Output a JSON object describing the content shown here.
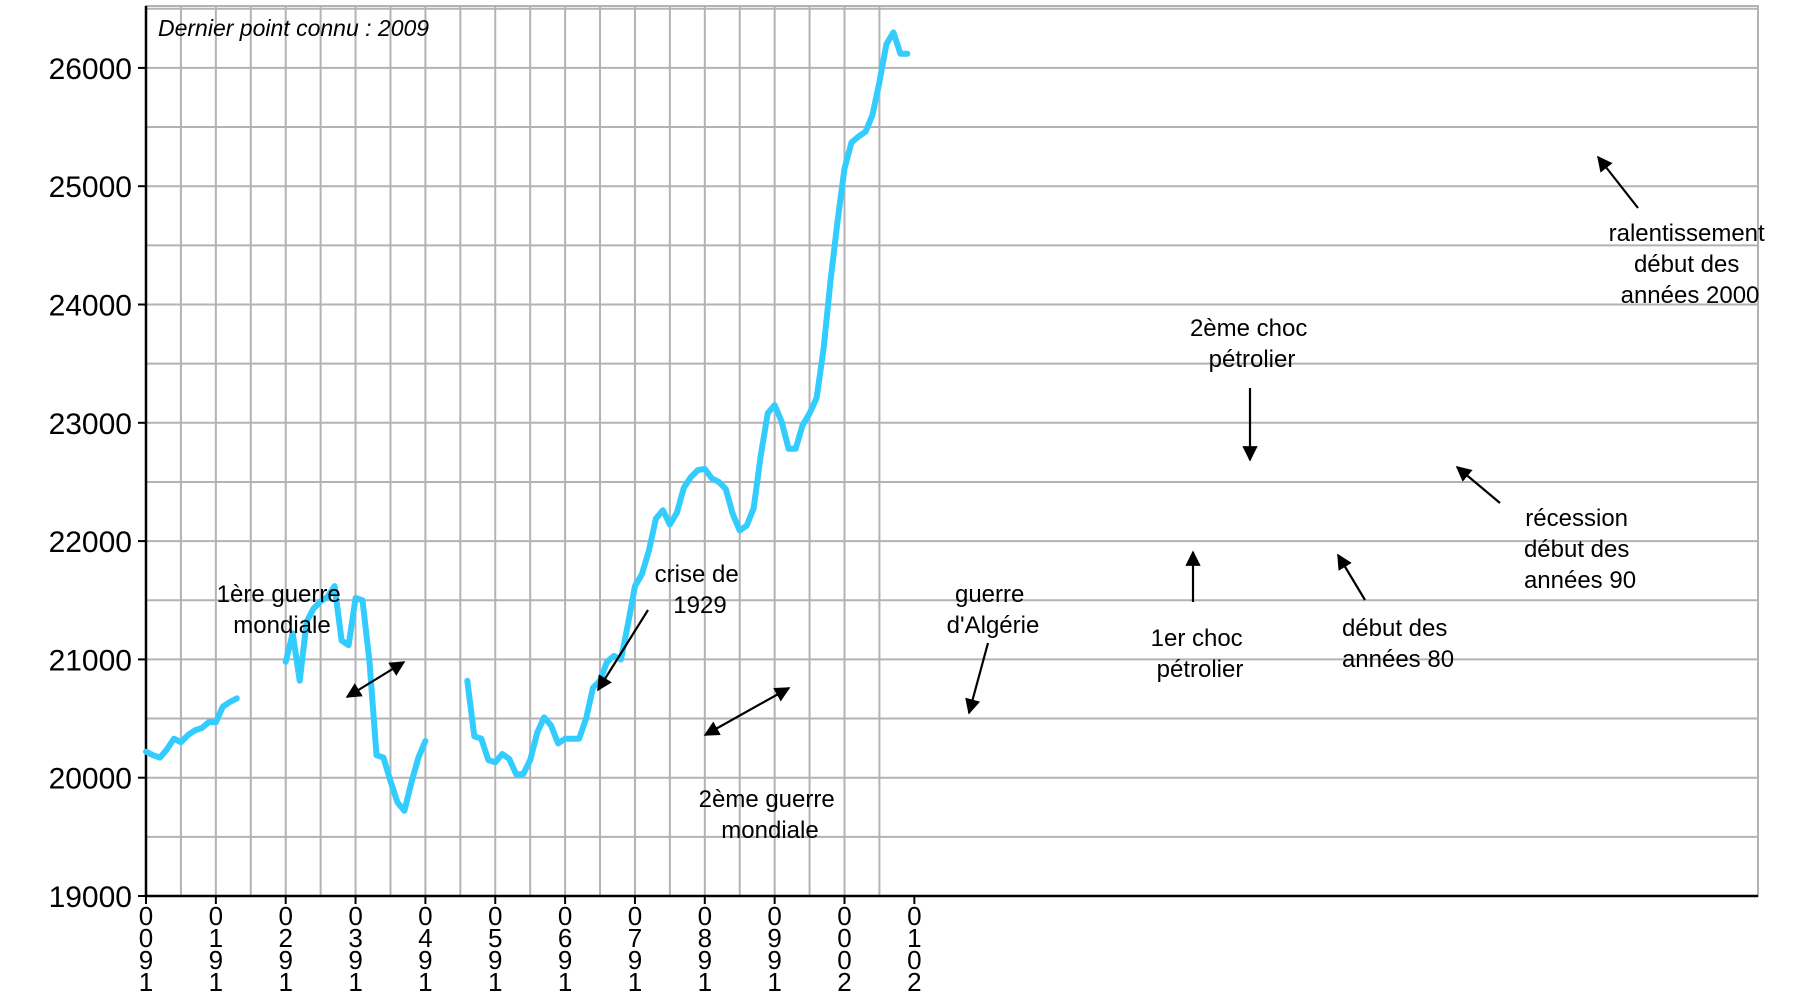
{
  "chart_data": {
    "type": "line",
    "title": "",
    "xlabel": "",
    "ylabel": "",
    "note": "Dernier point connu : 2009",
    "ylim": [
      19000,
      26500
    ],
    "xlim": [
      1900,
      2012
    ],
    "yticks": [
      19000,
      20000,
      21000,
      22000,
      23000,
      24000,
      25000,
      26000
    ],
    "xticks": [
      1900,
      1910,
      1920,
      1930,
      1940,
      1950,
      1960,
      1970,
      1980,
      1990,
      2000,
      2010
    ],
    "xtick_labels": [
      "1900",
      "1910",
      "1920",
      "1930",
      "1940",
      "1950",
      "1960",
      "1970",
      "1980",
      "1990",
      "2000",
      "2010"
    ],
    "grid": true,
    "line_color": "#33ccff",
    "series": [
      {
        "segments": [
          {
            "x": [
              1900,
              1901,
              1902,
              1903,
              1904,
              1905,
              1906,
              1907,
              1908,
              1909,
              1910,
              1911,
              1912,
              1913
            ],
            "y": [
              20220,
              20190,
              20170,
              20240,
              20330,
              20300,
              20360,
              20400,
              20420,
              20470,
              20470,
              20600,
              20640,
              20670
            ]
          },
          {
            "x": [
              1920,
              1921,
              1922,
              1923,
              1924,
              1925,
              1926,
              1927,
              1928,
              1929,
              1930,
              1931,
              1932,
              1933,
              1934,
              1935,
              1936,
              1937,
              1938,
              1939,
              1940
            ],
            "y": [
              20980,
              21220,
              20820,
              21320,
              21430,
              21490,
              21530,
              21620,
              21160,
              21120,
              21520,
              21500,
              20980,
              20190,
              20170,
              19970,
              19790,
              19720,
              19960,
              20170,
              20310
            ]
          },
          {
            "x": [
              1946,
              1947,
              1948,
              1949,
              1950,
              1951,
              1952,
              1953,
              1954,
              1955,
              1956,
              1957,
              1958,
              1959,
              1960,
              1961,
              1962,
              1963,
              1964,
              1965,
              1966,
              1967,
              1968,
              1969,
              1970,
              1971,
              1972,
              1973,
              1974,
              1975,
              1976,
              1977,
              1978,
              1979,
              1980,
              1981,
              1982,
              1983,
              1984,
              1985,
              1986,
              1987,
              1988,
              1989,
              1990,
              1991,
              1992,
              1993,
              1994,
              1995,
              1996,
              1997,
              1998,
              1999,
              2000,
              2001,
              2002,
              2003,
              2004,
              2005,
              2006,
              2007,
              2008,
              2009
            ],
            "y": [
              20820,
              20350,
              20330,
              20150,
              20130,
              20200,
              20160,
              20030,
              20030,
              20150,
              20380,
              20510,
              20440,
              20290,
              20330,
              20330,
              20330,
              20500,
              20760,
              20820,
              20980,
              21030,
              21000,
              21300,
              21620,
              21720,
              21920,
              22190,
              22260,
              22140,
              22240,
              22450,
              22540,
              22600,
              22610,
              22530,
              22500,
              22440,
              22230,
              22090,
              22130,
              22280,
              22720,
              23080,
              23150,
              23010,
              22780,
              22780,
              22980,
              23080,
              23210,
              23620,
              24200,
              24700,
              25150,
              25370,
              25420,
              25460,
              25600,
              25880,
              26200,
              26300,
              26120,
              26120
            ]
          }
        ]
      }
    ],
    "annotations": [
      {
        "text": [
          "1ère guerre",
          "mondiale"
        ]
      },
      {
        "text": [
          "crise de",
          "1929"
        ]
      },
      {
        "text": [
          "2ème guerre",
          "mondiale"
        ]
      },
      {
        "text": [
          "guerre",
          "d'Algérie"
        ]
      },
      {
        "text": [
          "1er choc",
          "pétrolier"
        ]
      },
      {
        "text": [
          "2ème choc",
          "pétrolier"
        ]
      },
      {
        "text": [
          "début des",
          "années 80"
        ]
      },
      {
        "text": [
          "récession",
          "début des",
          "années 90"
        ]
      },
      {
        "text": [
          "ralentissement",
          "début des",
          "années 2000"
        ]
      }
    ]
  }
}
